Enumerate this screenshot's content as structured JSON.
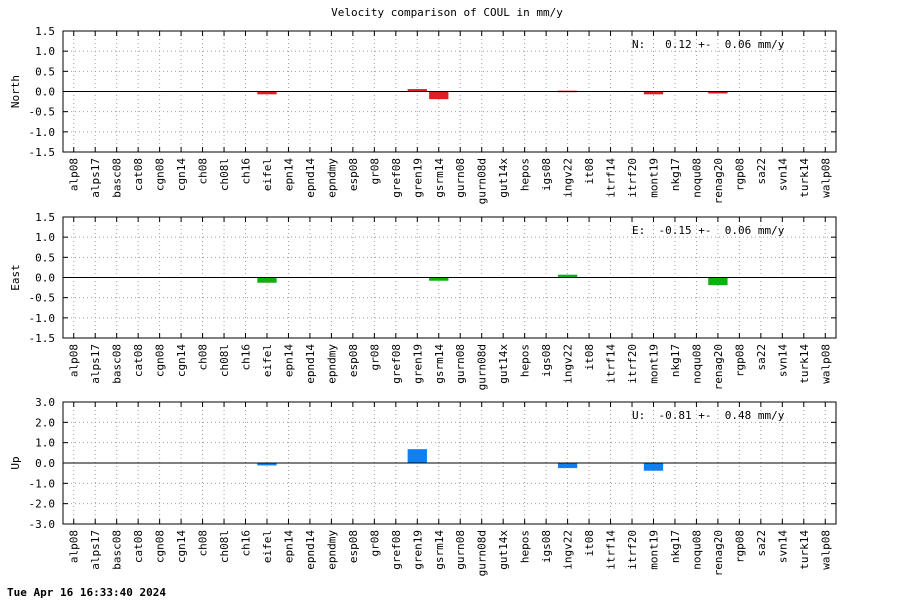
{
  "footer_timestamp": "Tue Apr 16 16:33:40 2024",
  "chart_data": [
    {
      "type": "bar",
      "title": "Velocity comparison of COUL in mm/y",
      "ylabel": "North",
      "ylim": [
        -1.5,
        1.5
      ],
      "yticks": [
        "1.5",
        "1.0",
        "0.5",
        "0.0",
        "-0.5",
        "-1.0",
        "-1.5"
      ],
      "grid": true,
      "annotation": "N:   0.12 +-  0.06 mm/y",
      "bar_color": "#e02020",
      "categories": [
        "alp08",
        "alps17",
        "basc08",
        "cat08",
        "cgn08",
        "cgn14",
        "ch08",
        "ch08l",
        "ch16",
        "eifel",
        "epn14",
        "epnd14",
        "epndmy",
        "esp08",
        "gr08",
        "gref08",
        "gren19",
        "gsrm14",
        "gurn08",
        "gurn08d",
        "gut14x",
        "hepos",
        "igs08",
        "ingv22",
        "it08",
        "itrf14",
        "itrf20",
        "mont19",
        "nkg17",
        "noqu08",
        "renag20",
        "rgp08",
        "sa22",
        "svn14",
        "turk14",
        "walp08"
      ],
      "values": [
        0,
        0,
        0,
        0,
        0,
        0,
        0,
        0,
        0,
        -0.07,
        0,
        0,
        0,
        0,
        0,
        0,
        0.06,
        -0.19,
        0,
        0,
        0,
        0,
        0,
        0.02,
        0,
        0,
        0,
        -0.07,
        0,
        0,
        -0.05,
        0,
        0,
        0,
        0,
        0
      ]
    },
    {
      "type": "bar",
      "title": "",
      "ylabel": "East",
      "ylim": [
        -1.5,
        1.5
      ],
      "yticks": [
        "1.5",
        "1.0",
        "0.5",
        "0.0",
        "-0.5",
        "-1.0",
        "-1.5"
      ],
      "grid": true,
      "annotation": "E:  -0.15 +-  0.06 mm/y",
      "bar_color": "#10b010",
      "categories": [
        "alp08",
        "alps17",
        "basc08",
        "cat08",
        "cgn08",
        "cgn14",
        "ch08",
        "ch08l",
        "ch16",
        "eifel",
        "epn14",
        "epnd14",
        "epndmy",
        "esp08",
        "gr08",
        "gref08",
        "gren19",
        "gsrm14",
        "gurn08",
        "gurn08d",
        "gut14x",
        "hepos",
        "igs08",
        "ingv22",
        "it08",
        "itrf14",
        "itrf20",
        "mont19",
        "nkg17",
        "noqu08",
        "renag20",
        "rgp08",
        "sa22",
        "svn14",
        "turk14",
        "walp08"
      ],
      "values": [
        0,
        0,
        0,
        0,
        0,
        0,
        0,
        0,
        0,
        -0.13,
        0,
        0,
        0,
        0,
        0,
        0,
        0,
        -0.08,
        0,
        0,
        0,
        0,
        0,
        0.07,
        0,
        0,
        0,
        0,
        0,
        0,
        -0.19,
        0,
        0,
        0,
        0,
        0
      ]
    },
    {
      "type": "bar",
      "title": "",
      "ylabel": "Up",
      "ylim": [
        -3.0,
        3.0
      ],
      "yticks": [
        "3.0",
        "2.0",
        "1.0",
        "0.0",
        "-1.0",
        "-2.0",
        "-3.0"
      ],
      "grid": true,
      "annotation": "U:  -0.81 +-  0.48 mm/y",
      "bar_color": "#1080f0",
      "categories": [
        "alp08",
        "alps17",
        "basc08",
        "cat08",
        "cgn08",
        "cgn14",
        "ch08",
        "ch08l",
        "ch16",
        "eifel",
        "epn14",
        "epnd14",
        "epndmy",
        "esp08",
        "gr08",
        "gref08",
        "gren19",
        "gsrm14",
        "gurn08",
        "gurn08d",
        "gut14x",
        "hepos",
        "igs08",
        "ingv22",
        "it08",
        "itrf14",
        "itrf20",
        "mont19",
        "nkg17",
        "noqu08",
        "renag20",
        "rgp08",
        "sa22",
        "svn14",
        "turk14",
        "walp08"
      ],
      "values": [
        0,
        0,
        0,
        0,
        0,
        0,
        0,
        0,
        0,
        -0.12,
        0,
        0,
        0,
        0,
        0,
        0,
        0.68,
        0,
        0,
        0,
        0,
        0,
        0,
        -0.25,
        0,
        0,
        0,
        -0.38,
        0,
        0,
        0,
        0,
        0,
        0,
        0,
        0
      ]
    }
  ]
}
